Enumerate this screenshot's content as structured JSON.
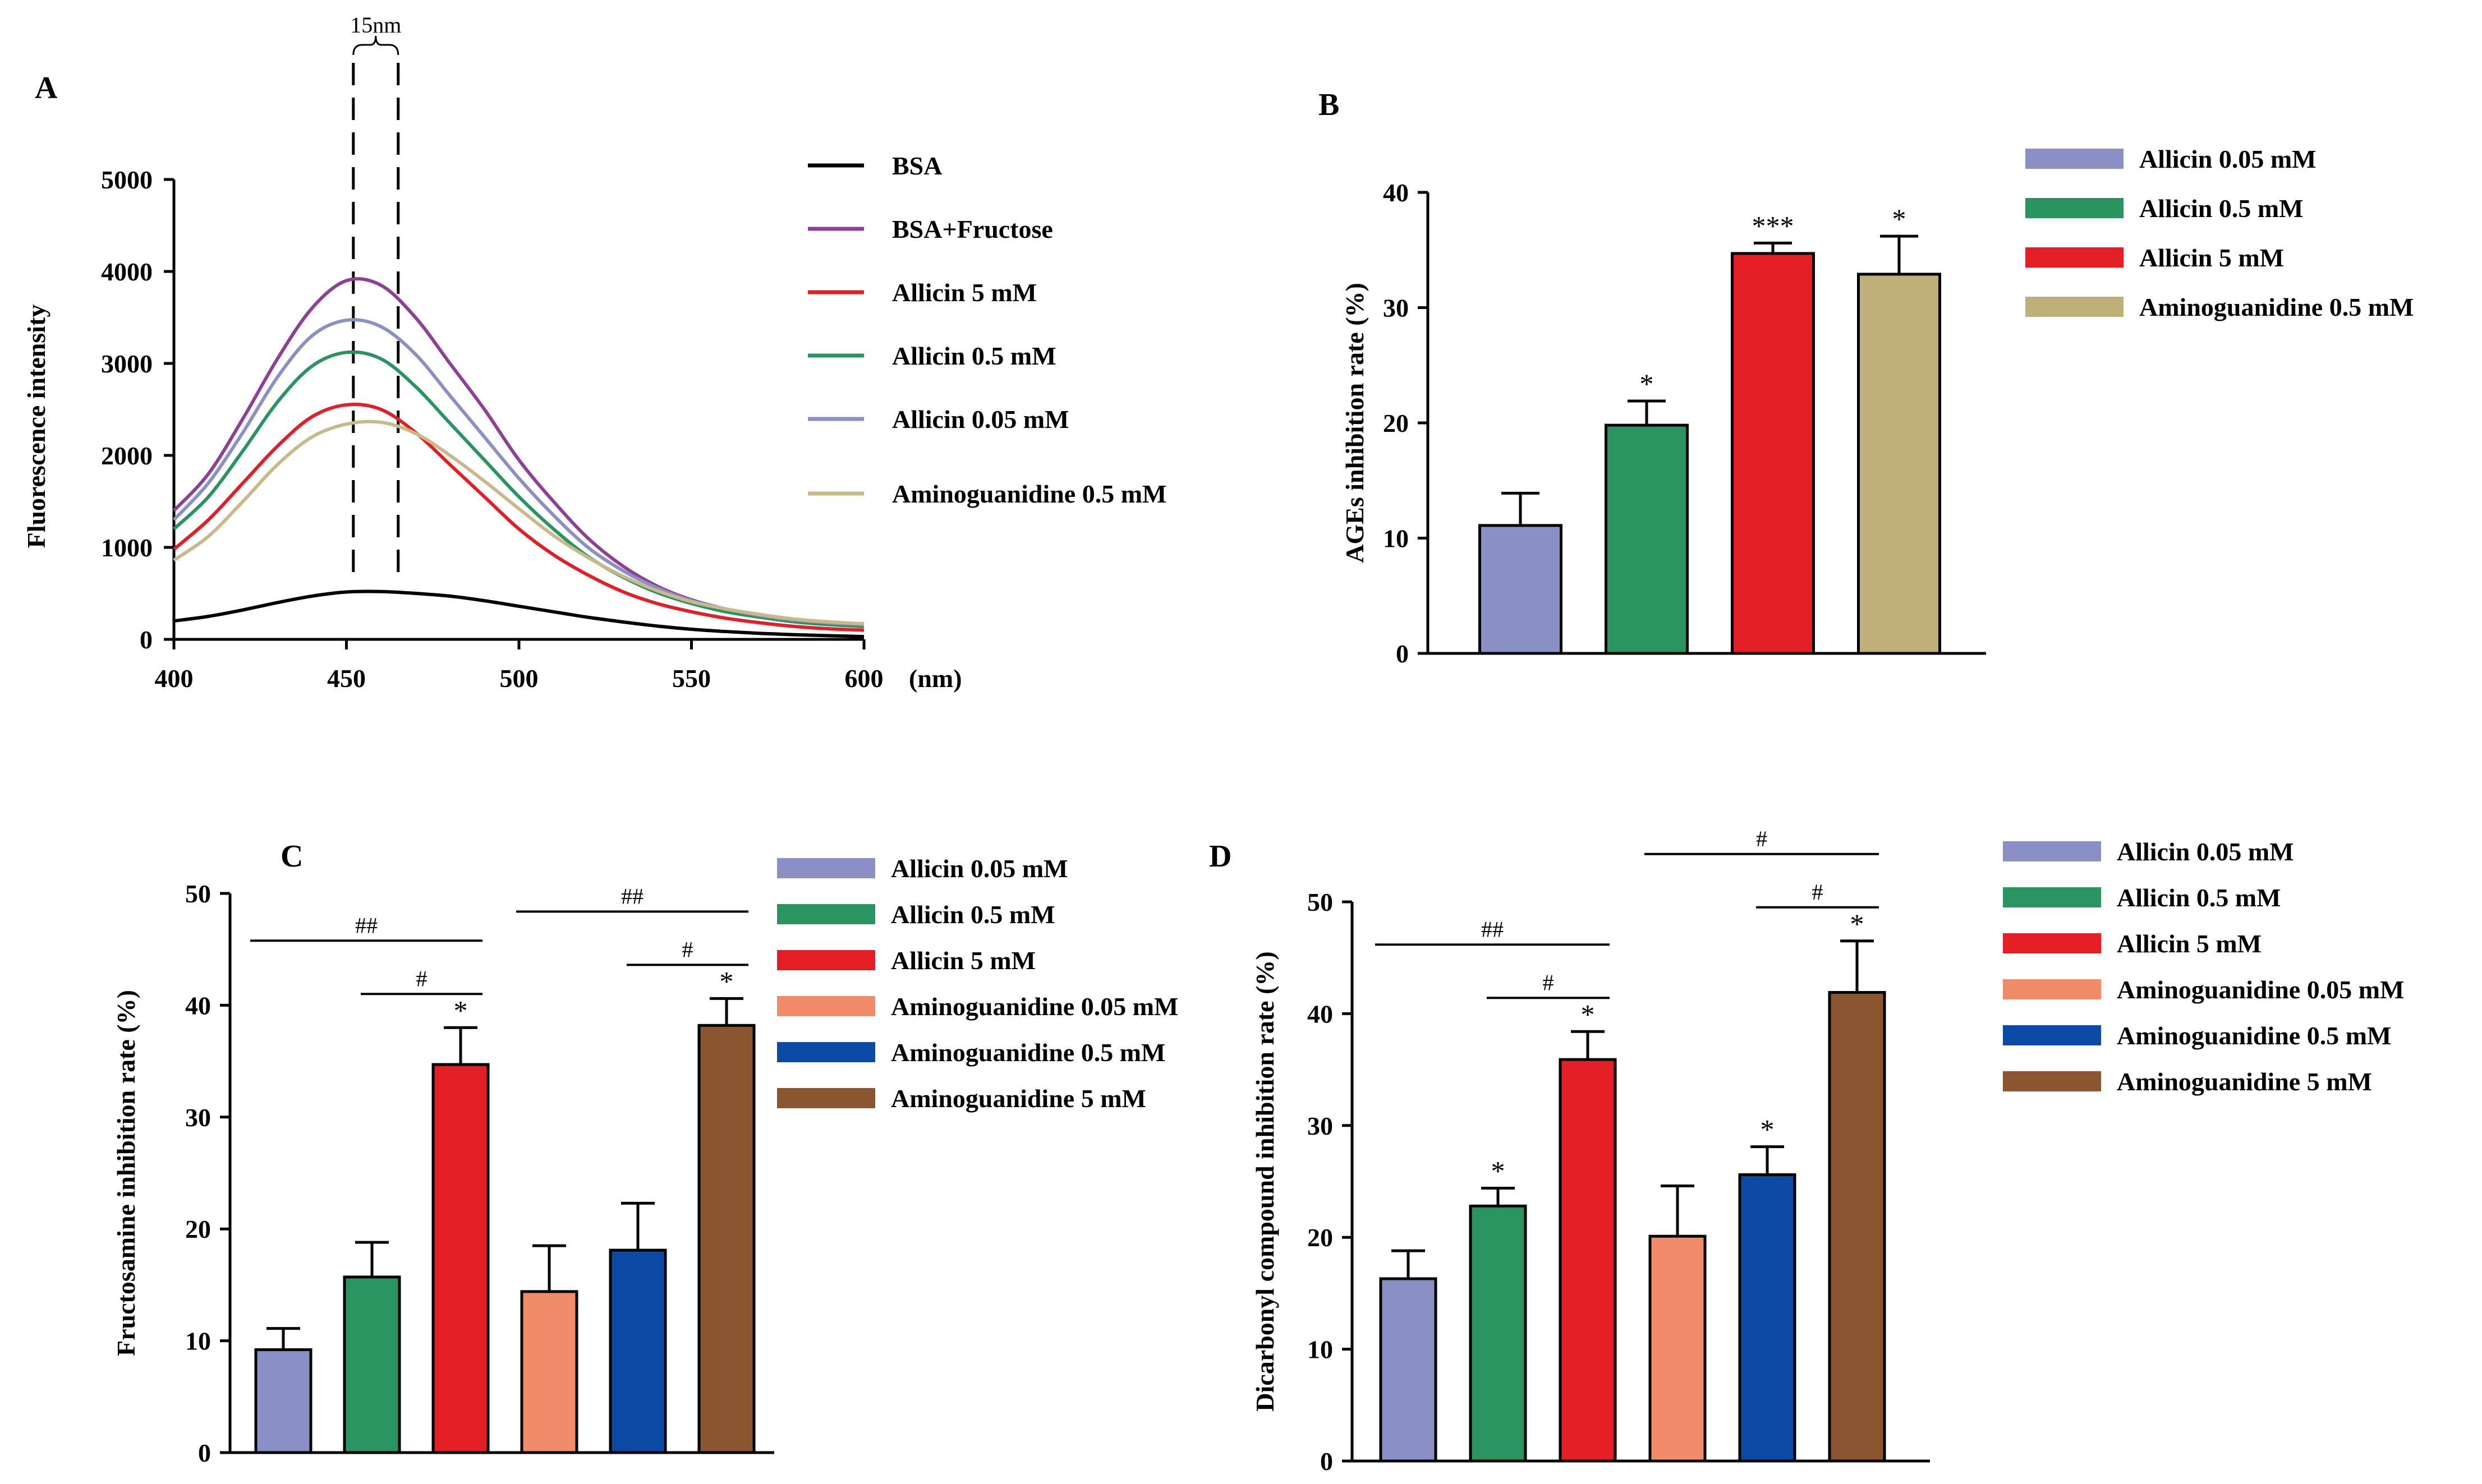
{
  "chart_data": [
    {
      "panel": "A",
      "type": "line",
      "title": "",
      "xlabel": "(nm)",
      "ylabel": "Fluorescence intensity",
      "xlim": [
        400,
        600
      ],
      "ylim": [
        0,
        5000
      ],
      "xticks": [
        400,
        450,
        500,
        550,
        600
      ],
      "yticks": [
        0,
        1000,
        2000,
        3000,
        4000,
        5000
      ],
      "annotation": "15nm",
      "peak_markers_nm": [
        452,
        465
      ],
      "series": [
        {
          "name": "BSA",
          "color": "#000000",
          "x": [
            400,
            410,
            420,
            430,
            440,
            450,
            460,
            470,
            480,
            490,
            500,
            510,
            520,
            530,
            540,
            550,
            560,
            570,
            580,
            590,
            600
          ],
          "y": [
            200,
            250,
            320,
            400,
            470,
            515,
            520,
            500,
            470,
            420,
            360,
            300,
            240,
            190,
            145,
            110,
            85,
            65,
            50,
            40,
            30
          ]
        },
        {
          "name": "BSA+Fructose",
          "color": "#8E3F96",
          "x": [
            400,
            410,
            420,
            430,
            440,
            450,
            460,
            470,
            480,
            490,
            500,
            510,
            520,
            530,
            540,
            550,
            560,
            570,
            580,
            590,
            600
          ],
          "y": [
            1400,
            1800,
            2400,
            3050,
            3600,
            3900,
            3850,
            3500,
            3000,
            2500,
            1950,
            1500,
            1100,
            800,
            580,
            430,
            330,
            260,
            210,
            180,
            160
          ]
        },
        {
          "name": "Allicin 5 mM",
          "color": "#E41E25",
          "x": [
            400,
            410,
            420,
            430,
            440,
            450,
            460,
            470,
            480,
            490,
            500,
            510,
            520,
            530,
            540,
            550,
            560,
            570,
            580,
            590,
            600
          ],
          "y": [
            980,
            1300,
            1700,
            2100,
            2420,
            2550,
            2500,
            2250,
            1900,
            1550,
            1200,
            920,
            700,
            520,
            390,
            300,
            230,
            180,
            140,
            115,
            100
          ]
        },
        {
          "name": "Allicin 0.5 mM",
          "color": "#2A9460",
          "x": [
            400,
            410,
            420,
            430,
            440,
            450,
            460,
            470,
            480,
            490,
            500,
            510,
            520,
            530,
            540,
            550,
            560,
            570,
            580,
            590,
            600
          ],
          "y": [
            1200,
            1550,
            2050,
            2580,
            2970,
            3120,
            3050,
            2750,
            2350,
            1950,
            1550,
            1200,
            900,
            680,
            510,
            390,
            300,
            240,
            190,
            160,
            140
          ]
        },
        {
          "name": "Allicin 0.05 mM",
          "color": "#8A8FC4",
          "x": [
            400,
            410,
            420,
            430,
            440,
            450,
            460,
            470,
            480,
            490,
            500,
            510,
            520,
            530,
            540,
            550,
            560,
            570,
            580,
            590,
            600
          ],
          "y": [
            1300,
            1700,
            2250,
            2850,
            3300,
            3470,
            3400,
            3100,
            2650,
            2200,
            1750,
            1350,
            1000,
            750,
            560,
            420,
            330,
            260,
            210,
            180,
            160
          ]
        },
        {
          "name": "Aminoguanidine 0.5 mM",
          "color": "#C8B98A",
          "x": [
            400,
            410,
            420,
            430,
            440,
            450,
            460,
            470,
            480,
            490,
            500,
            510,
            520,
            530,
            540,
            550,
            560,
            570,
            580,
            590,
            600
          ],
          "y": [
            860,
            1120,
            1500,
            1900,
            2200,
            2340,
            2360,
            2240,
            2000,
            1720,
            1420,
            1130,
            890,
            690,
            530,
            410,
            330,
            270,
            220,
            190,
            170
          ]
        }
      ]
    },
    {
      "panel": "B",
      "type": "bar",
      "title": "",
      "xlabel": "",
      "ylabel": "AGEs inhibition rate (%)",
      "ylim": [
        0,
        40
      ],
      "yticks": [
        0,
        10,
        20,
        30,
        40
      ],
      "categories": [
        "Allicin 0.05 mM",
        "Allicin 0.5 mM",
        "Allicin 5 mM",
        "Aminoguanidine 0.5 mM"
      ],
      "values": [
        11.1,
        19.8,
        34.7,
        32.9
      ],
      "errors": [
        2.8,
        2.1,
        0.9,
        3.3
      ],
      "colors": [
        "#8A8FC4",
        "#2A9460",
        "#E41E25",
        "#BFB07A"
      ],
      "significance": [
        "",
        "*",
        "***",
        "*"
      ]
    },
    {
      "panel": "C",
      "type": "bar",
      "title": "",
      "xlabel": "",
      "ylabel": "Fructosamine inhibition rate (%)",
      "ylim": [
        0,
        50
      ],
      "yticks": [
        0,
        10,
        20,
        30,
        40,
        50
      ],
      "categories": [
        "Allicin 0.05 mM",
        "Allicin 0.5 mM",
        "Allicin 5 mM",
        "Aminoguanidine 0.05 mM",
        "Aminoguanidine 0.5 mM",
        "Aminoguanidine 5 mM"
      ],
      "values": [
        9.2,
        15.7,
        34.7,
        14.4,
        18.1,
        38.2
      ],
      "errors": [
        1.9,
        3.1,
        3.3,
        4.1,
        4.2,
        2.4
      ],
      "colors": [
        "#8A8FC4",
        "#2A9460",
        "#E41E25",
        "#F08C68",
        "#0A4AA5",
        "#8B5530"
      ],
      "significance": [
        "",
        "",
        "*",
        "",
        "",
        "*"
      ],
      "brackets": [
        {
          "from": 0,
          "to": 2,
          "label": "##",
          "level": 2
        },
        {
          "from": 1,
          "to": 2,
          "label": "#",
          "level": 1
        },
        {
          "from": 3,
          "to": 5,
          "label": "##",
          "level": 2
        },
        {
          "from": 4,
          "to": 5,
          "label": "#",
          "level": 1
        }
      ]
    },
    {
      "panel": "D",
      "type": "bar",
      "title": "",
      "xlabel": "",
      "ylabel": "Dicarbonyl compound inhibition rate (%)",
      "ylim": [
        0,
        50
      ],
      "yticks": [
        0,
        10,
        20,
        30,
        40,
        50
      ],
      "categories": [
        "Allicin 0.05 mM",
        "Allicin 0.5 mM",
        "Allicin 5 mM",
        "Aminoguanidine 0.05 mM",
        "Aminoguanidine 0.5 mM",
        "Aminoguanidine 5 mM"
      ],
      "values": [
        16.3,
        22.8,
        35.9,
        20.1,
        25.6,
        41.9
      ],
      "errors": [
        2.5,
        1.6,
        2.5,
        4.5,
        2.5,
        4.6
      ],
      "colors": [
        "#8A8FC4",
        "#2A9460",
        "#E41E25",
        "#F08C68",
        "#0A4AA5",
        "#8B5530"
      ],
      "significance": [
        "",
        "*",
        "*",
        "",
        "*",
        "*"
      ],
      "brackets": [
        {
          "from": 0,
          "to": 2,
          "label": "##",
          "level": 2
        },
        {
          "from": 1,
          "to": 2,
          "label": "#",
          "level": 1
        },
        {
          "from": 3,
          "to": 5,
          "label": "#",
          "level": 2
        },
        {
          "from": 4,
          "to": 5,
          "label": "#",
          "level": 1
        }
      ]
    }
  ]
}
